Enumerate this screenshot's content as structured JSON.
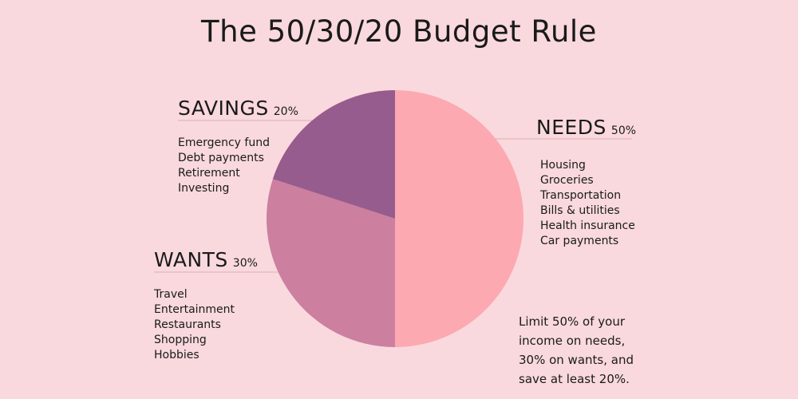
{
  "title": "The 50/30/20 Budget Rule",
  "chart_data": {
    "type": "pie",
    "title": "The 50/30/20 Budget Rule",
    "slices": [
      {
        "label": "NEEDS",
        "value": 50,
        "display": "50%",
        "color": "#fca9b1",
        "items": [
          "Housing",
          "Groceries",
          "Transportation",
          "Bills & utilities",
          "Health insurance",
          "Car payments"
        ]
      },
      {
        "label": "WANTS",
        "value": 30,
        "display": "30%",
        "color": "#cc7f9f",
        "items": [
          "Travel",
          "Entertainment",
          "Restaurants",
          "Shopping",
          "Hobbies"
        ]
      },
      {
        "label": "SAVINGS",
        "value": 20,
        "display": "20%",
        "color": "#965c8d",
        "items": [
          "Emergency fund",
          "Debt payments",
          "Retirement",
          "Investing"
        ]
      }
    ]
  },
  "note": "Limit 50% of your income on needs, 30% on wants, and save at least 20%.",
  "colors": {
    "background": "#f9d9dd",
    "leader_line": "#d9aeb4"
  }
}
